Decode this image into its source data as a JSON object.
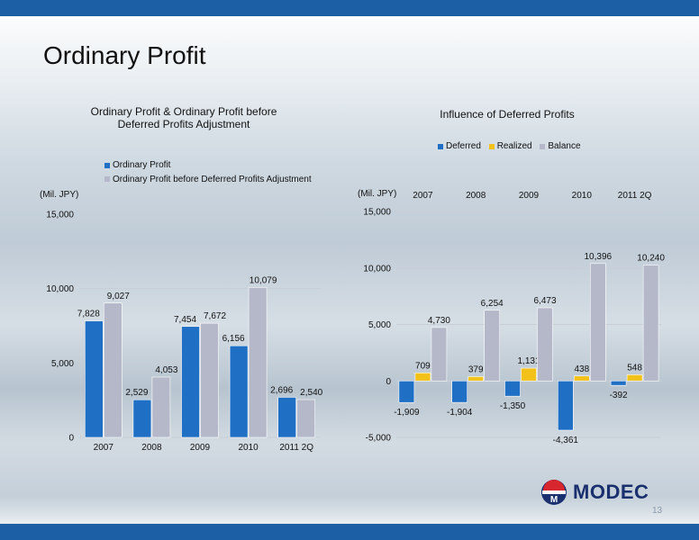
{
  "page": {
    "title": "Ordinary Profit",
    "page_number": "13",
    "logo_text": "MODEC"
  },
  "colors": {
    "band": "#1d5fa5",
    "ordinary": "#1f6fc4",
    "ordinary_before": "#b4b8c8",
    "deferred": "#1f6fc4",
    "realized": "#f2c21b",
    "balance": "#b4b8c8"
  },
  "chart_data": [
    {
      "type": "bar",
      "title_lines": [
        "Ordinary Profit & Ordinary Profit before",
        "Deferred Profits Adjustment"
      ],
      "unit_label": "(Mil. JPY)",
      "categories": [
        "2007",
        "2008",
        "2009",
        "2010",
        "2011 2Q"
      ],
      "series": [
        {
          "name": "Ordinary Profit",
          "values": [
            7828,
            2529,
            7454,
            6156,
            2696
          ],
          "labels": [
            "7,828",
            "2,529",
            "7,454",
            "6,156",
            "2,696"
          ]
        },
        {
          "name": "Ordinary Profit before Deferred Profits Adjustment",
          "values": [
            9027,
            4053,
            7672,
            10079,
            2540
          ],
          "labels": [
            "9,027",
            "4,053",
            "7,672",
            "10,079",
            "2,540"
          ]
        }
      ],
      "ylim": [
        0,
        15000
      ],
      "ticks": [
        0,
        5000,
        10000,
        15000
      ],
      "tick_labels": [
        "0",
        "5,000",
        "10,000",
        "15,000"
      ],
      "grid": true,
      "legend_position": "top-left"
    },
    {
      "type": "bar",
      "title": "Influence of Deferred Profits",
      "unit_label": "(Mil. JPY)",
      "categories": [
        "2007",
        "2008",
        "2009",
        "2010",
        "2011 2Q"
      ],
      "series": [
        {
          "name": "Deferred",
          "values": [
            -1909,
            -1904,
            -1350,
            -4361,
            -392
          ],
          "labels": [
            "-1,909",
            "-1,904",
            "-1,350",
            "-4,361",
            "-392"
          ]
        },
        {
          "name": "Realized",
          "values": [
            709,
            379,
            1131,
            438,
            548
          ],
          "labels": [
            "709",
            "379",
            "1,131",
            "438",
            "548"
          ]
        },
        {
          "name": "Balance",
          "values": [
            4730,
            6254,
            6473,
            10396,
            10240
          ],
          "labels": [
            "4,730",
            "6,254",
            "6,473",
            "10,396",
            "10,240"
          ]
        }
      ],
      "ylim": [
        -5000,
        15000
      ],
      "ticks": [
        -5000,
        0,
        5000,
        10000,
        15000
      ],
      "tick_labels": [
        "-5,000",
        "0",
        "5,000",
        "10,000",
        "15,000"
      ],
      "grid": true,
      "category_labels_position": "top",
      "legend_position": "top-center"
    }
  ]
}
